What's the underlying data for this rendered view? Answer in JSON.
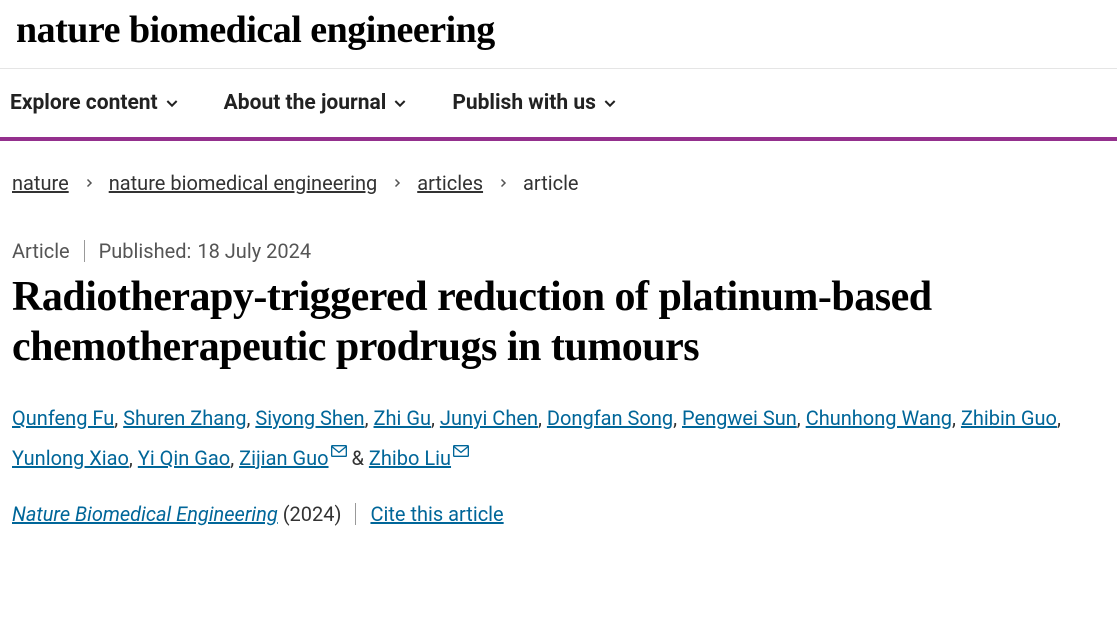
{
  "logo": "nature biomedical engineering",
  "nav": {
    "explore": "Explore content",
    "about": "About the journal",
    "publish": "Publish with us"
  },
  "accent_color": "#94308d",
  "breadcrumb": {
    "root": "nature",
    "journal": "nature biomedical engineering",
    "section": "articles",
    "leaf": "article"
  },
  "meta": {
    "type": "Article",
    "published_label": "Published:",
    "published_date": "18 July 2024"
  },
  "title": "Radiotherapy-triggered reduction of platinum-based chemotherapeutic prodrugs in tumours",
  "authors": [
    {
      "name": "Qunfeng Fu",
      "mail": false
    },
    {
      "name": "Shuren Zhang",
      "mail": false
    },
    {
      "name": "Siyong Shen",
      "mail": false
    },
    {
      "name": "Zhi Gu",
      "mail": false
    },
    {
      "name": "Junyi Chen",
      "mail": false
    },
    {
      "name": "Dongfan Song",
      "mail": false
    },
    {
      "name": "Pengwei Sun",
      "mail": false
    },
    {
      "name": "Chunhong Wang",
      "mail": false
    },
    {
      "name": "Zhibin Guo",
      "mail": false
    },
    {
      "name": "Yunlong Xiao",
      "mail": false
    },
    {
      "name": "Yi Qin Gao",
      "mail": false
    },
    {
      "name": "Zijian Guo",
      "mail": true
    },
    {
      "name": "Zhibo Liu",
      "mail": true
    }
  ],
  "citation": {
    "journal_ref": "Nature Biomedical Engineering",
    "year": "(2024)",
    "cite_label": "Cite this article"
  },
  "link_color": "#006699"
}
